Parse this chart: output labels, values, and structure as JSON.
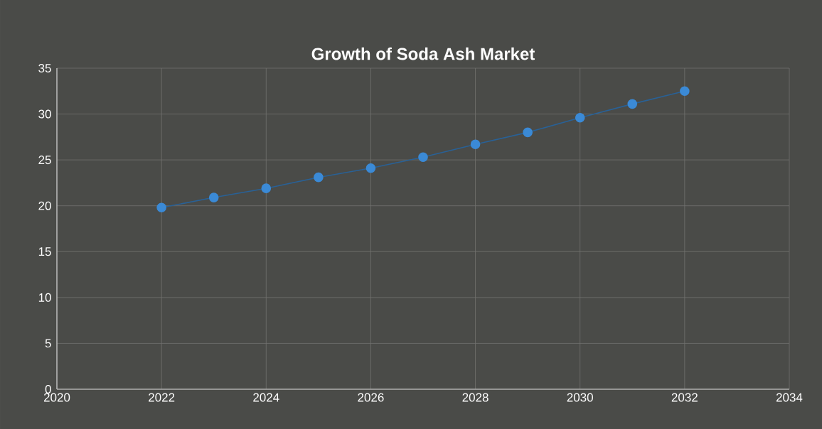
{
  "chart_data": {
    "type": "line",
    "title": "Growth of Soda Ash Market",
    "x": [
      2022,
      2023,
      2024,
      2025,
      2026,
      2027,
      2028,
      2029,
      2030,
      2031,
      2032
    ],
    "series": [
      {
        "color": "#3b8ad6",
        "values": [
          19.8,
          20.9,
          21.9,
          23.1,
          24.1,
          25.3,
          26.7,
          28.0,
          29.6,
          31.1,
          32.5
        ]
      }
    ],
    "xlim": [
      2020,
      2034
    ],
    "xticks": [
      2020,
      2022,
      2024,
      2026,
      2028,
      2030,
      2032,
      2034
    ],
    "ylim": [
      0,
      35
    ],
    "yticks": [
      0,
      5,
      10,
      15,
      20,
      25,
      30,
      35
    ],
    "grid": true,
    "marker": "circle",
    "line_style": "solid"
  }
}
